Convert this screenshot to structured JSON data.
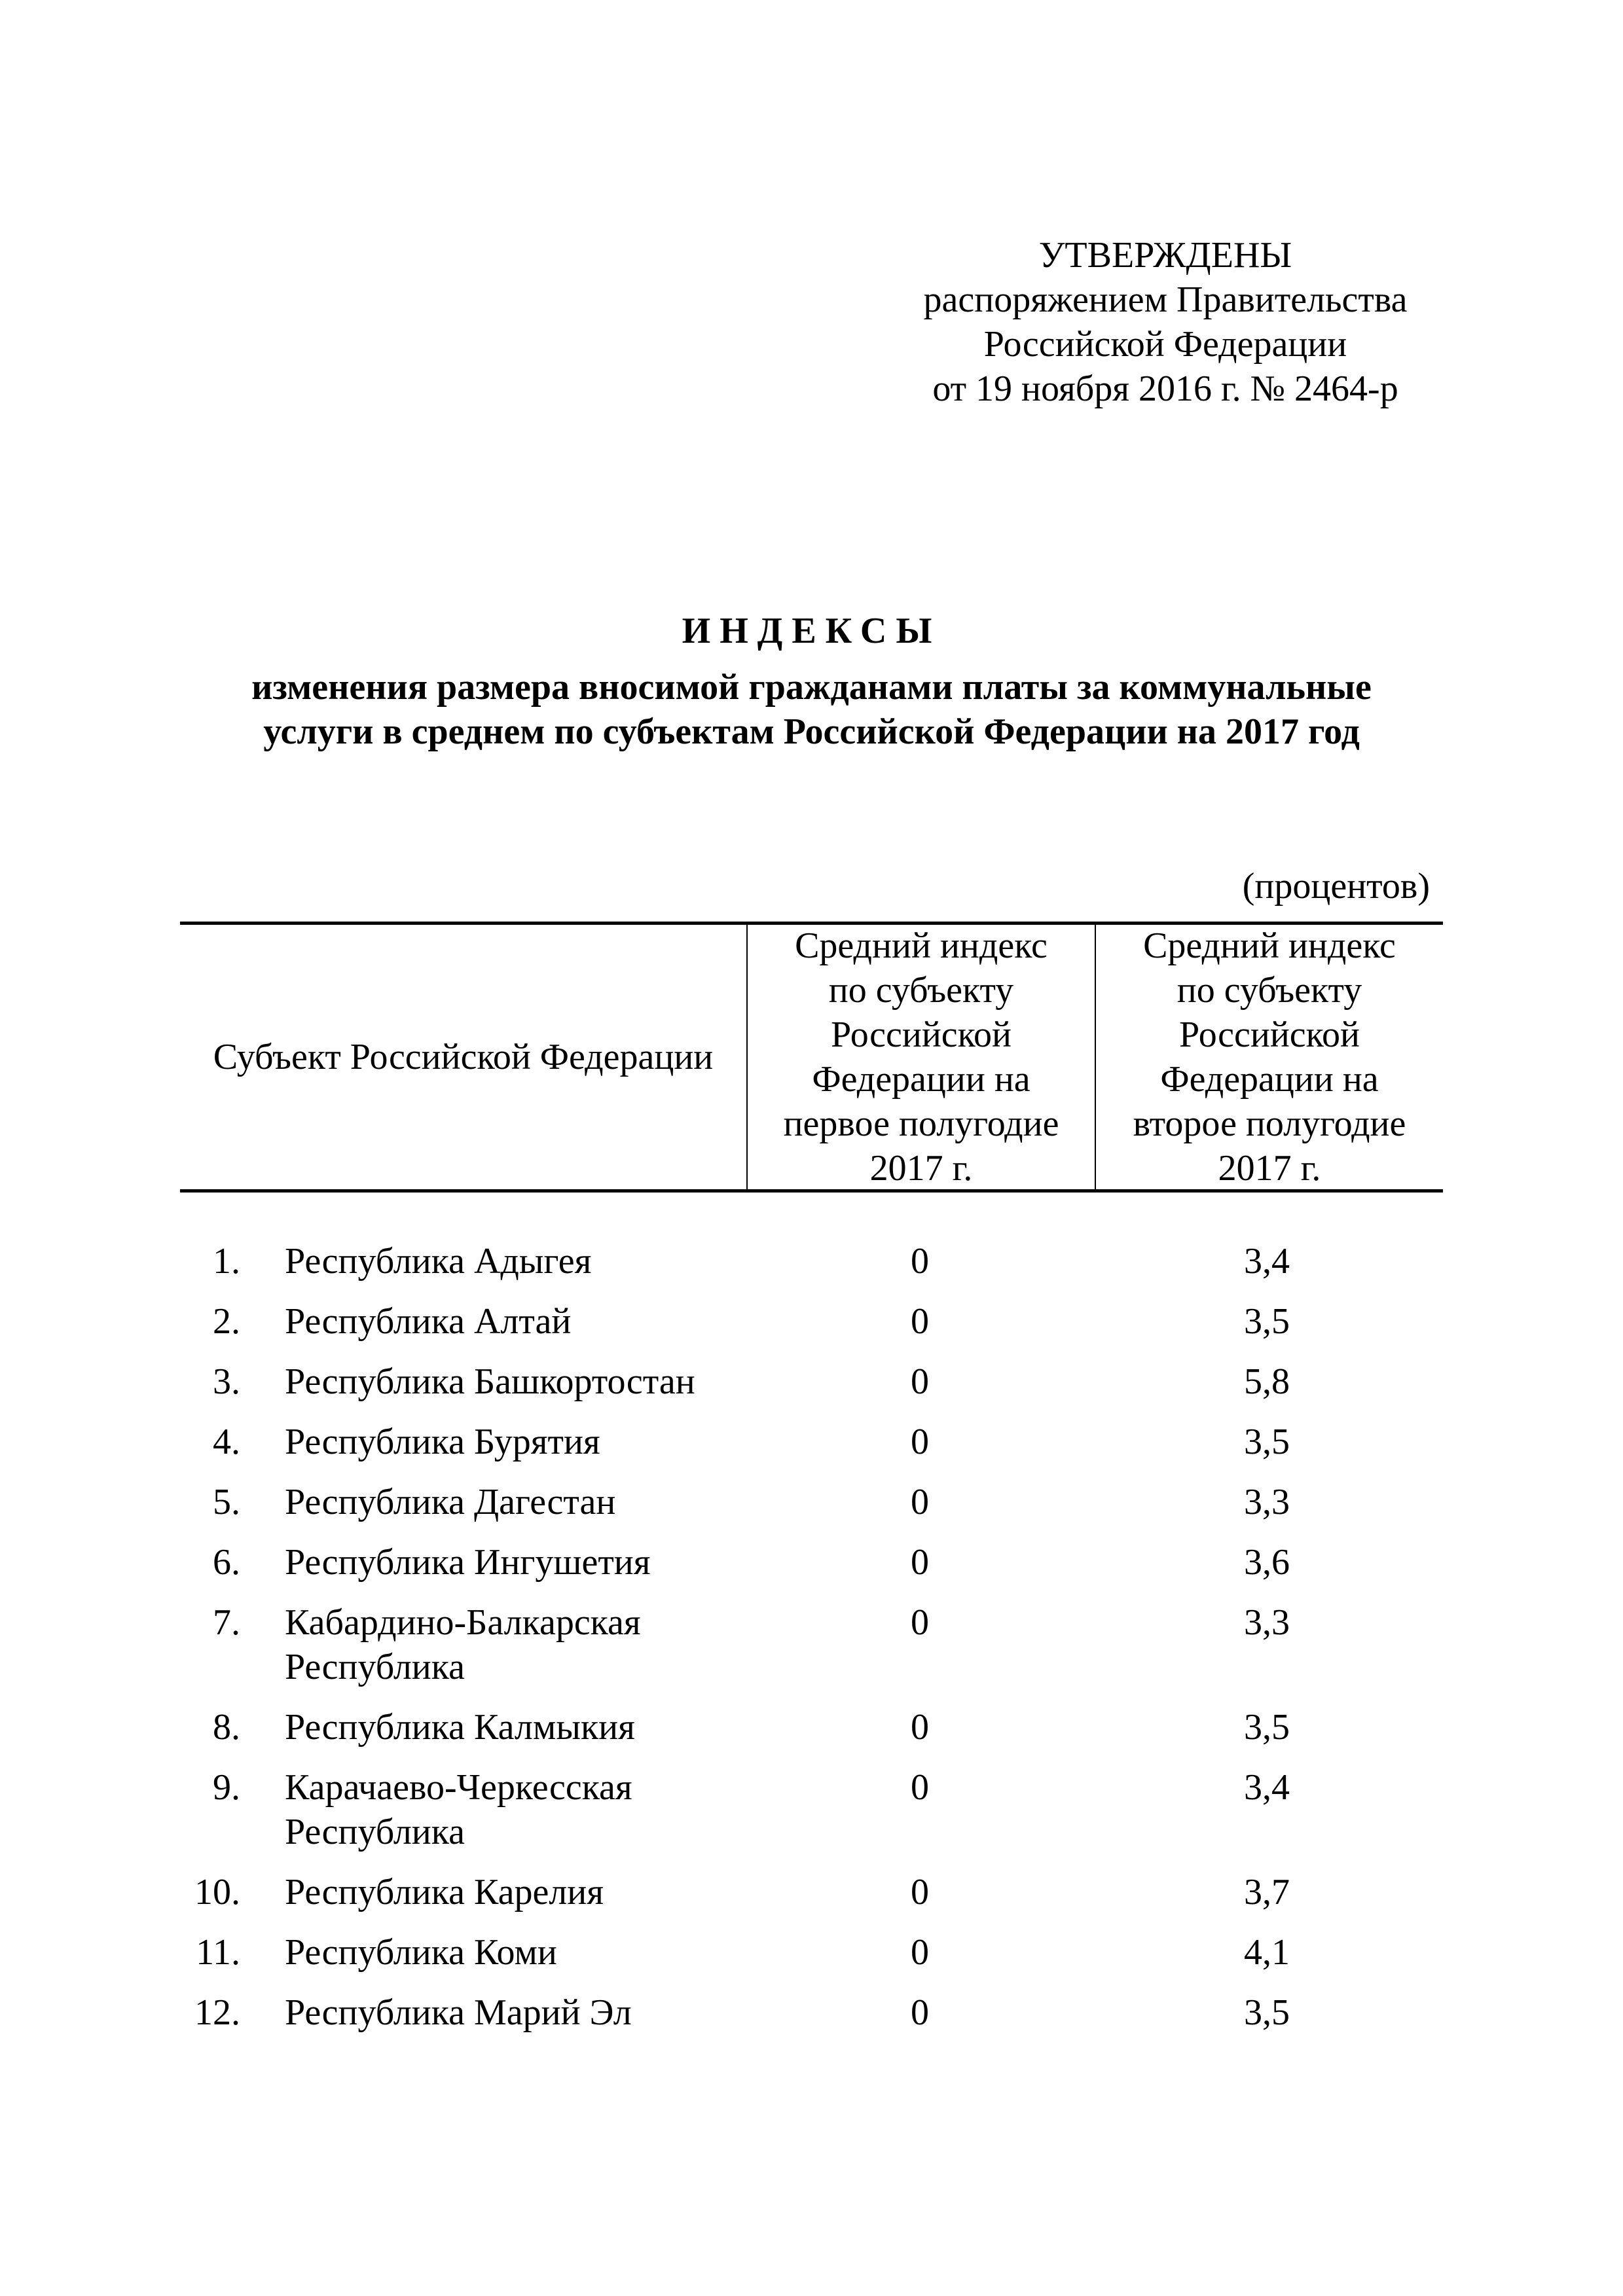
{
  "approval": {
    "title": "УТВЕРЖДЕНЫ",
    "lines": [
      "распоряжением Правительства",
      "Российской Федерации",
      "от 19 ноября 2016 г.  № 2464-р"
    ]
  },
  "heading": {
    "title": "ИНДЕКСЫ",
    "subtitle_lines": [
      "изменения размера вносимой гражданами платы за коммунальные",
      "услуги в среднем по субъектам Российской Федерации на 2017 год"
    ]
  },
  "units": "(процентов)",
  "table": {
    "headers": [
      "Субъект Российской Федерации",
      "Средний индекс по субъекту Российской Федерации на первое полугодие 2017 г.",
      "Средний индекс по субъекту Российской Федерации на второе полугодие 2017 г."
    ],
    "rows": [
      {
        "num": "1.",
        "name": "Республика Адыгея",
        "h1": "0",
        "h2": "3,4"
      },
      {
        "num": "2.",
        "name": "Республика Алтай",
        "h1": "0",
        "h2": "3,5"
      },
      {
        "num": "3.",
        "name": "Республика Башкортостан",
        "h1": "0",
        "h2": "5,8"
      },
      {
        "num": "4.",
        "name": "Республика Бурятия",
        "h1": "0",
        "h2": "3,5"
      },
      {
        "num": "5.",
        "name": "Республика Дагестан",
        "h1": "0",
        "h2": "3,3"
      },
      {
        "num": "6.",
        "name": "Республика Ингушетия",
        "h1": "0",
        "h2": "3,6"
      },
      {
        "num": "7.",
        "name": "Кабардино-Балкарская Республика",
        "h1": "0",
        "h2": "3,3"
      },
      {
        "num": "8.",
        "name": "Республика Калмыкия",
        "h1": "0",
        "h2": "3,5"
      },
      {
        "num": "9.",
        "name": "Карачаево-Черкесская Республика",
        "h1": "0",
        "h2": "3,4"
      },
      {
        "num": "10.",
        "name": "Республика Карелия",
        "h1": "0",
        "h2": "3,7"
      },
      {
        "num": "11.",
        "name": "Республика Коми",
        "h1": "0",
        "h2": "4,1"
      },
      {
        "num": "12.",
        "name": "Республика Марий Эл",
        "h1": "0",
        "h2": "3,5"
      }
    ]
  }
}
